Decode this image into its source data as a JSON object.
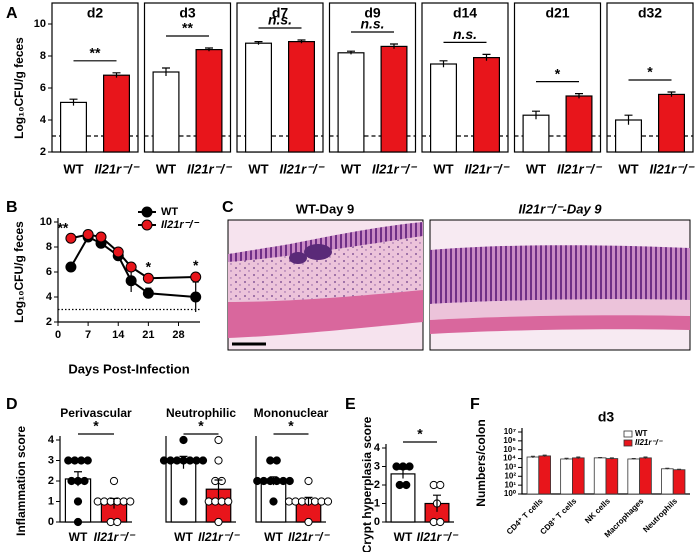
{
  "chart_data": [
    {
      "type": "bar",
      "panel": "A",
      "title": "d2",
      "y_label": "Log₁₀CFU/g feces",
      "categories": [
        "WT",
        "Il21r⁻/⁻"
      ],
      "values": [
        5.1,
        6.8
      ],
      "errors": [
        0.2,
        0.15
      ],
      "colors": [
        "#ffffff",
        "#e8151b"
      ],
      "ylim": [
        2,
        10
      ],
      "yticks": [
        2,
        4,
        6,
        8,
        10
      ],
      "threshold": 3,
      "significance": "**"
    },
    {
      "type": "bar",
      "title": "d3",
      "categories": [
        "WT",
        "Il21r⁻/⁻"
      ],
      "values": [
        7.0,
        8.4
      ],
      "errors": [
        0.25,
        0.1
      ],
      "colors": [
        "#ffffff",
        "#e8151b"
      ],
      "ylim": [
        2,
        10
      ],
      "threshold": 3,
      "significance": "**"
    },
    {
      "type": "bar",
      "title": "d7",
      "categories": [
        "WT",
        "Il21r⁻/⁻"
      ],
      "values": [
        8.8,
        8.9
      ],
      "errors": [
        0.1,
        0.1
      ],
      "colors": [
        "#ffffff",
        "#e8151b"
      ],
      "ylim": [
        2,
        10
      ],
      "threshold": 3,
      "significance": "n.s."
    },
    {
      "type": "bar",
      "title": "d9",
      "categories": [
        "WT",
        "Il21r⁻/⁻"
      ],
      "values": [
        8.2,
        8.6
      ],
      "errors": [
        0.1,
        0.15
      ],
      "colors": [
        "#ffffff",
        "#e8151b"
      ],
      "ylim": [
        2,
        10
      ],
      "threshold": 3,
      "significance": "n.s."
    },
    {
      "type": "bar",
      "title": "d14",
      "categories": [
        "WT",
        "Il21r⁻/⁻"
      ],
      "values": [
        7.5,
        7.9
      ],
      "errors": [
        0.2,
        0.2
      ],
      "colors": [
        "#ffffff",
        "#e8151b"
      ],
      "ylim": [
        2,
        10
      ],
      "threshold": 3,
      "significance": "n.s."
    },
    {
      "type": "bar",
      "title": "d21",
      "categories": [
        "WT",
        "Il21r⁻/⁻"
      ],
      "values": [
        4.3,
        5.5
      ],
      "errors": [
        0.25,
        0.15
      ],
      "colors": [
        "#ffffff",
        "#e8151b"
      ],
      "ylim": [
        2,
        10
      ],
      "threshold": 3,
      "significance": "*"
    },
    {
      "type": "bar",
      "title": "d32",
      "categories": [
        "WT",
        "Il21r⁻/⁻"
      ],
      "values": [
        4.0,
        5.6
      ],
      "errors": [
        0.3,
        0.15
      ],
      "colors": [
        "#ffffff",
        "#e8151b"
      ],
      "ylim": [
        2,
        10
      ],
      "threshold": 3,
      "significance": "*"
    },
    {
      "type": "line",
      "panel": "B",
      "y_label": "Log₁₀CFU/g feces",
      "x_label": "Days Post-Infection",
      "x": [
        3,
        7,
        10,
        14,
        17,
        21,
        32
      ],
      "series": [
        {
          "name": "WT",
          "color": "#000000",
          "values": [
            6.4,
            8.8,
            8.3,
            7.3,
            5.3,
            4.3,
            4.0
          ],
          "errors": [
            0.2,
            0.2,
            0.3,
            0.4,
            0.9,
            0.4,
            1.2
          ]
        },
        {
          "name": "Il21r⁻/⁻",
          "color": "#e8151b",
          "values": [
            8.7,
            9.0,
            8.8,
            7.6,
            6.4,
            5.5,
            5.6
          ],
          "errors": [
            0.1,
            0.1,
            0.2,
            0.3,
            0.3,
            0.2,
            0.2
          ]
        }
      ],
      "significance": [
        "**",
        null,
        null,
        null,
        null,
        "*",
        "*"
      ],
      "xlim": [
        0,
        33
      ],
      "xticks": [
        0,
        7,
        14,
        21,
        28
      ],
      "ylim": [
        2,
        10
      ],
      "yticks": [
        2,
        4,
        6,
        8,
        10
      ],
      "threshold": 3,
      "legend": "upper right"
    },
    {
      "type": "bar",
      "panel": "D",
      "title": "Perivascular",
      "y_label": "Inflammation score",
      "categories": [
        "WT",
        "Il21r⁻/⁻"
      ],
      "values": [
        2.1,
        0.9
      ],
      "errors": [
        0.35,
        0.25
      ],
      "colors": [
        "#ffffff",
        "#e8151b"
      ],
      "points": [
        [
          3,
          3,
          3,
          3,
          2,
          2,
          2,
          1,
          0
        ],
        [
          2,
          1,
          1,
          1,
          1,
          1,
          1,
          0,
          0
        ]
      ],
      "point_colors": [
        "#000000",
        "#ffffff"
      ],
      "ylim": [
        0,
        4
      ],
      "yticks": [
        0,
        1,
        2,
        3,
        4
      ],
      "significance": "*"
    },
    {
      "type": "bar",
      "title": "Neutrophilic",
      "categories": [
        "WT",
        "Il21r⁻/⁻"
      ],
      "values": [
        2.9,
        1.6
      ],
      "errors": [
        0.3,
        0.45
      ],
      "colors": [
        "#ffffff",
        "#e8151b"
      ],
      "points": [
        [
          4,
          3,
          3,
          3,
          3,
          3,
          3,
          3,
          1
        ],
        [
          4,
          3,
          2,
          2,
          1,
          1,
          1,
          1,
          0
        ]
      ],
      "point_colors": [
        "#000000",
        "#ffffff"
      ],
      "ylim": [
        0,
        4
      ],
      "significance": "*"
    },
    {
      "type": "bar",
      "title": "Mononuclear",
      "categories": [
        "WT",
        "Il21r⁻/⁻"
      ],
      "values": [
        2.0,
        1.0
      ],
      "errors": [
        0.2,
        0.2
      ],
      "colors": [
        "#ffffff",
        "#e8151b"
      ],
      "points": [
        [
          3,
          3,
          2,
          2,
          2,
          2,
          2,
          2,
          1
        ],
        [
          2,
          1,
          1,
          1,
          1,
          1,
          1,
          1,
          0
        ]
      ],
      "point_colors": [
        "#000000",
        "#ffffff"
      ],
      "ylim": [
        0,
        4
      ],
      "significance": "*"
    },
    {
      "type": "bar",
      "panel": "E",
      "y_label": "Crypt hyperplasia score",
      "categories": [
        "WT",
        "Il21r⁻/⁻"
      ],
      "values": [
        2.6,
        1.0
      ],
      "errors": [
        0.25,
        0.45
      ],
      "colors": [
        "#ffffff",
        "#e8151b"
      ],
      "points": [
        [
          3,
          3,
          3,
          2,
          2
        ],
        [
          2,
          2,
          1,
          0,
          0
        ]
      ],
      "point_colors": [
        "#000000",
        "#ffffff"
      ],
      "ylim": [
        0,
        4
      ],
      "yticks": [
        0,
        1,
        2,
        3,
        4
      ],
      "significance": "*"
    },
    {
      "type": "bar",
      "panel": "F",
      "title": "d3",
      "y_label": "Numbers/colon",
      "log_scale": true,
      "categories": [
        "CD4⁺ T cells",
        "CD8⁺ T cells",
        "NK cells",
        "Macrophages",
        "Neutrophils"
      ],
      "series": [
        {
          "name": "WT",
          "color": "#ffffff",
          "values": [
            15000,
            9000,
            12000,
            9000,
            700
          ],
          "errors": [
            3000,
            1500,
            1000,
            1000,
            80
          ]
        },
        {
          "name": "Il21r⁻/⁻",
          "color": "#e8151b",
          "values": [
            20000,
            12000,
            10000,
            12000,
            550
          ],
          "errors": [
            4000,
            2500,
            1500,
            2500,
            60
          ]
        }
      ],
      "ylim": [
        1,
        10000000
      ],
      "yticks": [
        {
          "value": 1,
          "label": "10⁰"
        },
        {
          "value": 10,
          "label": "10¹"
        },
        {
          "value": 100,
          "label": "10²"
        },
        {
          "value": 1000,
          "label": "10³"
        },
        {
          "value": 10000,
          "label": "10⁴"
        },
        {
          "value": 100000,
          "label": "10⁵"
        },
        {
          "value": 1000000,
          "label": "10⁶"
        },
        {
          "value": 10000000,
          "label": "10⁷"
        }
      ],
      "legend": "upper right"
    }
  ],
  "images": {
    "panel": "C",
    "items": [
      {
        "title": "WT-Day 9"
      },
      {
        "title": "Il21r⁻/⁻-Day 9"
      }
    ]
  }
}
